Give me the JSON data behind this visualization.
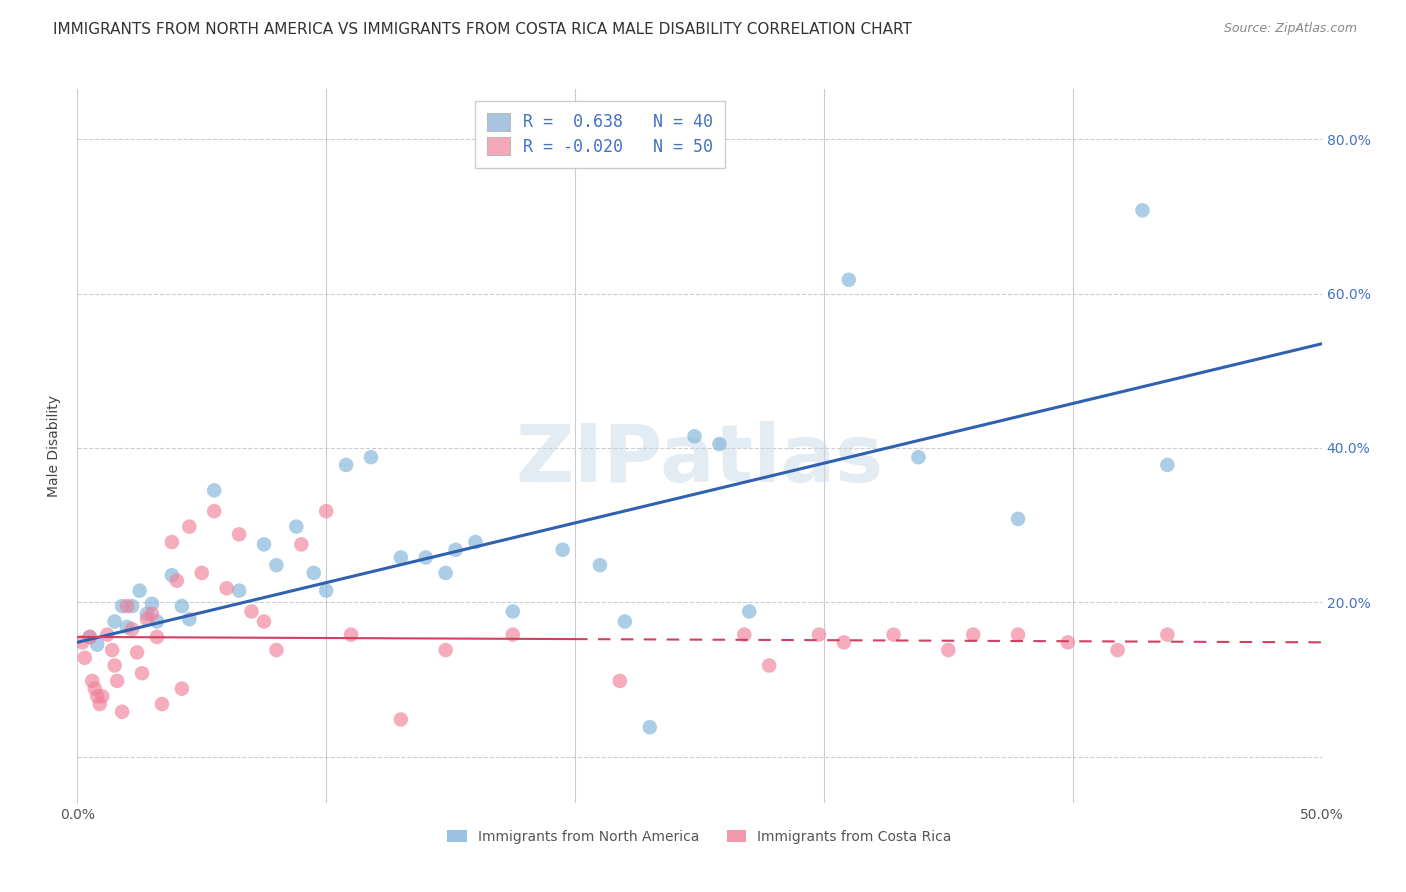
{
  "title": "IMMIGRANTS FROM NORTH AMERICA VS IMMIGRANTS FROM COSTA RICA MALE DISABILITY CORRELATION CHART",
  "source": "Source: ZipAtlas.com",
  "ylabel": "Male Disability",
  "watermark": "ZIPatlas",
  "x_min": 0.0,
  "x_max": 0.5,
  "y_min": -0.06,
  "y_max": 0.865,
  "x_ticks": [
    0.0,
    0.1,
    0.2,
    0.3,
    0.4,
    0.5
  ],
  "x_tick_labels": [
    "0.0%",
    "",
    "",
    "",
    "",
    "50.0%"
  ],
  "y_ticks": [
    0.0,
    0.2,
    0.4,
    0.6,
    0.8
  ],
  "y_tick_labels": [
    "",
    "20.0%",
    "40.0%",
    "60.0%",
    "80.0%"
  ],
  "legend1_color": "#a8c4e0",
  "legend2_color": "#f4a8b8",
  "series1_color": "#7eb3d8",
  "series2_color": "#f08098",
  "line1_color": "#3060b0",
  "line2_color": "#d04060",
  "background_color": "#ffffff",
  "grid_color": "#cccccc",
  "title_fontsize": 11,
  "source_fontsize": 9,
  "axis_label_fontsize": 10,
  "tick_fontsize": 10,
  "blue_x": [
    0.005,
    0.008,
    0.015,
    0.018,
    0.02,
    0.022,
    0.025,
    0.028,
    0.03,
    0.032,
    0.038,
    0.042,
    0.045,
    0.055,
    0.065,
    0.075,
    0.08,
    0.088,
    0.095,
    0.1,
    0.108,
    0.118,
    0.13,
    0.14,
    0.148,
    0.152,
    0.16,
    0.175,
    0.195,
    0.21,
    0.22,
    0.23,
    0.248,
    0.258,
    0.27,
    0.31,
    0.338,
    0.378,
    0.428,
    0.438
  ],
  "blue_y": [
    0.155,
    0.145,
    0.175,
    0.195,
    0.168,
    0.195,
    0.215,
    0.185,
    0.198,
    0.175,
    0.235,
    0.195,
    0.178,
    0.345,
    0.215,
    0.275,
    0.248,
    0.298,
    0.238,
    0.215,
    0.378,
    0.388,
    0.258,
    0.258,
    0.238,
    0.268,
    0.278,
    0.188,
    0.268,
    0.248,
    0.175,
    0.038,
    0.415,
    0.405,
    0.188,
    0.618,
    0.388,
    0.308,
    0.708,
    0.378
  ],
  "pink_x": [
    0.002,
    0.003,
    0.005,
    0.006,
    0.007,
    0.008,
    0.009,
    0.01,
    0.012,
    0.014,
    0.015,
    0.016,
    0.018,
    0.02,
    0.022,
    0.024,
    0.026,
    0.028,
    0.03,
    0.032,
    0.034,
    0.038,
    0.04,
    0.042,
    0.045,
    0.05,
    0.055,
    0.06,
    0.065,
    0.07,
    0.075,
    0.08,
    0.09,
    0.1,
    0.11,
    0.13,
    0.148,
    0.175,
    0.218,
    0.268,
    0.278,
    0.298,
    0.308,
    0.328,
    0.35,
    0.36,
    0.378,
    0.398,
    0.418,
    0.438
  ],
  "pink_y": [
    0.148,
    0.128,
    0.155,
    0.098,
    0.088,
    0.078,
    0.068,
    0.078,
    0.158,
    0.138,
    0.118,
    0.098,
    0.058,
    0.195,
    0.165,
    0.135,
    0.108,
    0.178,
    0.185,
    0.155,
    0.068,
    0.278,
    0.228,
    0.088,
    0.298,
    0.238,
    0.318,
    0.218,
    0.288,
    0.188,
    0.175,
    0.138,
    0.275,
    0.318,
    0.158,
    0.048,
    0.138,
    0.158,
    0.098,
    0.158,
    0.118,
    0.158,
    0.148,
    0.158,
    0.138,
    0.158,
    0.158,
    0.148,
    0.138,
    0.158
  ],
  "line1_x0": 0.0,
  "line1_y0": 0.148,
  "line1_x1": 0.5,
  "line1_y1": 0.535,
  "line2_x0": 0.0,
  "line2_y0": 0.155,
  "line2_x1": 0.5,
  "line2_y1": 0.148,
  "line2_solid_end": 0.2
}
